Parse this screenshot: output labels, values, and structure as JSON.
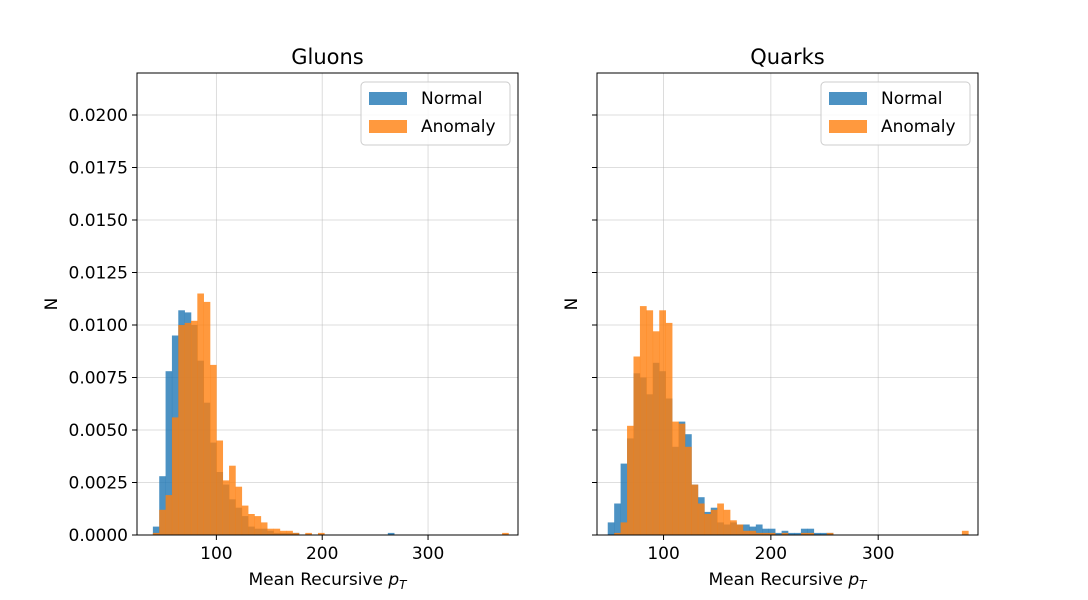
{
  "chart_data": [
    {
      "type": "bar",
      "title": "Gluons",
      "xlabel": "Mean Recursive",
      "xlabel_sub": "p",
      "xlabel_subscript": "T",
      "ylabel": "N",
      "xlim": [
        25,
        385
      ],
      "ylim": [
        0,
        0.022
      ],
      "xticks": [
        "100",
        "200",
        "300"
      ],
      "yticks": [
        "0.0000",
        "0.0025",
        "0.0050",
        "0.0075",
        "0.0100",
        "0.0125",
        "0.0150",
        "0.0175",
        "0.0200"
      ],
      "xtick_values": [
        100,
        200,
        300
      ],
      "ytick_values": [
        0,
        0.0025,
        0.005,
        0.0075,
        0.01,
        0.0125,
        0.015,
        0.0175,
        0.02
      ],
      "grid": true,
      "legend": "top-right",
      "bin_width": 6,
      "x": [
        40,
        46,
        52,
        58,
        64,
        70,
        76,
        82,
        88,
        94,
        100,
        106,
        112,
        118,
        124,
        130,
        136,
        142,
        148,
        154,
        160,
        166,
        172,
        178,
        184,
        190,
        196,
        202,
        208,
        214,
        220,
        226,
        232,
        238,
        244,
        250,
        256,
        262,
        268,
        274,
        280,
        286,
        292,
        298,
        304,
        310,
        316,
        322,
        328,
        334,
        340,
        346,
        352,
        358,
        364,
        370
      ],
      "series": [
        {
          "name": "Normal",
          "color": "#1f77b4",
          "values": [
            0.0004,
            0.0028,
            0.0078,
            0.0095,
            0.0107,
            0.0106,
            0.01,
            0.0083,
            0.0063,
            0.0044,
            0.003,
            0.0024,
            0.0017,
            0.0013,
            0.0009,
            0.0004,
            0.0003,
            0.0003,
            0.0002,
            0.0001,
            0.0001,
            0.0001,
            0.0001,
            0,
            0,
            0,
            0,
            0,
            0,
            0,
            0,
            0,
            0,
            0,
            0,
            0,
            0,
            0.0001,
            0,
            0,
            0,
            0,
            0,
            0,
            0,
            0,
            0,
            0,
            0,
            0,
            0,
            0,
            0,
            0,
            0,
            0
          ]
        },
        {
          "name": "Anomaly",
          "color": "#ff7f0e",
          "values": [
            0.0001,
            0.0012,
            0.0019,
            0.0056,
            0.01,
            0.0101,
            0.0102,
            0.0115,
            0.0111,
            0.0081,
            0.0045,
            0.0026,
            0.0033,
            0.0023,
            0.0014,
            0.001,
            0.0009,
            0.0006,
            0.0003,
            0.0003,
            0.0002,
            0.0002,
            0.0001,
            0,
            0.0001,
            0,
            0.0001,
            0,
            0,
            0,
            0,
            0,
            0,
            0,
            0,
            0,
            0,
            0,
            0,
            0,
            0,
            0,
            0,
            0,
            0,
            0,
            0,
            0,
            0,
            0,
            0,
            0,
            0,
            0,
            0,
            0.0001
          ]
        }
      ]
    },
    {
      "type": "bar",
      "title": "Quarks",
      "xlabel": "Mean Recursive",
      "xlabel_sub": "p",
      "xlabel_subscript": "T",
      "ylabel": "N",
      "xlim": [
        38,
        393
      ],
      "ylim": [
        0,
        0.022
      ],
      "xticks": [
        "100",
        "200",
        "300"
      ],
      "yticks": [],
      "xtick_values": [
        100,
        200,
        300
      ],
      "ytick_values": [
        0,
        0.0025,
        0.005,
        0.0075,
        0.01,
        0.0125,
        0.015,
        0.0175,
        0.02
      ],
      "grid": true,
      "legend": "top-right",
      "bin_width": 6,
      "x": [
        48,
        54,
        60,
        66,
        72,
        78,
        84,
        90,
        96,
        102,
        108,
        114,
        120,
        126,
        132,
        138,
        144,
        150,
        156,
        162,
        168,
        174,
        180,
        186,
        192,
        198,
        204,
        210,
        216,
        222,
        228,
        234,
        240,
        246,
        252,
        258,
        264,
        270,
        276,
        282,
        288,
        294,
        300,
        306,
        312,
        318,
        324,
        330,
        336,
        342,
        348,
        354,
        360,
        366,
        372,
        378
      ],
      "series": [
        {
          "name": "Normal",
          "color": "#1f77b4",
          "values": [
            0.0006,
            0.0015,
            0.0034,
            0.0046,
            0.0077,
            0.0075,
            0.0067,
            0.0082,
            0.0078,
            0.0065,
            0.0042,
            0.0054,
            0.0048,
            0.0024,
            0.0018,
            0.0011,
            0.0013,
            0.0006,
            0.0005,
            0.0006,
            0.0005,
            0.0005,
            0.0004,
            0.0005,
            0.0003,
            0.0003,
            0.0001,
            0.0002,
            0.0001,
            0.0001,
            0.0003,
            0.0003,
            0.0001,
            0.0001,
            0.0001,
            0,
            0,
            0,
            0,
            0,
            0,
            0,
            0,
            0,
            0,
            0,
            0,
            0,
            0,
            0,
            0,
            0,
            0,
            0,
            0,
            0
          ]
        },
        {
          "name": "Anomaly",
          "color": "#ff7f0e",
          "values": [
            0,
            0.0001,
            0.0006,
            0.0052,
            0.0085,
            0.0109,
            0.0107,
            0.0097,
            0.0107,
            0.0101,
            0.0054,
            0.0053,
            0.0042,
            0.0024,
            0.0015,
            0.001,
            0.0012,
            0.0015,
            0.0012,
            0.0007,
            0.0005,
            0.0002,
            0.0002,
            0.0001,
            0.0001,
            0.0001,
            0,
            0.0001,
            0,
            0,
            0.0001,
            0.0001,
            0,
            0,
            0.0001,
            0,
            0,
            0,
            0,
            0,
            0,
            0,
            0,
            0,
            0,
            0,
            0,
            0,
            0,
            0,
            0,
            0,
            0,
            0,
            0,
            0.0002
          ]
        }
      ]
    }
  ]
}
